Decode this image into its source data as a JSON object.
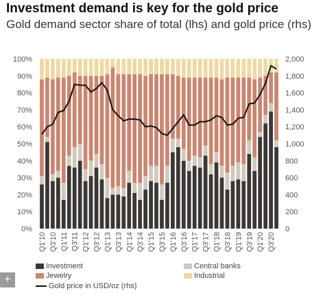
{
  "title": "Investment demand is key for the gold price",
  "subtitle": "Gold demand sector share of total (lhs) and gold price (rhs)",
  "chart_data": {
    "type": "bar",
    "stacked": true,
    "x": [
      "Q1'10",
      "Q2'10",
      "Q3'10",
      "Q4'10",
      "Q1'11",
      "Q2'11",
      "Q3'11",
      "Q4'11",
      "Q1'12",
      "Q2'12",
      "Q3'12",
      "Q4'12",
      "Q1'13",
      "Q2'13",
      "Q3'13",
      "Q4'13",
      "Q1'14",
      "Q2'14",
      "Q3'14",
      "Q4'14",
      "Q1'15",
      "Q2'15",
      "Q3'15",
      "Q4'15",
      "Q1'16",
      "Q2'16",
      "Q3'16",
      "Q4'16",
      "Q1'17",
      "Q2'17",
      "Q3'17",
      "Q4'17",
      "Q1'18",
      "Q2'18",
      "Q3'18",
      "Q4'18",
      "Q1'19",
      "Q2'19",
      "Q3'19",
      "Q4'19",
      "Q1'20",
      "Q2'20",
      "Q3'20",
      "Q4'20"
    ],
    "x_tick_labels": [
      "Q1'10",
      "Q3'10",
      "Q1'11",
      "Q3'11",
      "Q1'12",
      "Q3'12",
      "Q1'13",
      "Q3'13",
      "Q1'14",
      "Q3'14",
      "Q1'15",
      "Q3'15",
      "Q1'16",
      "Q3'16",
      "Q1'17",
      "Q3'17",
      "Q1'18",
      "Q3'18",
      "Q1'19",
      "Q3'19",
      "Q1'20",
      "Q3'20"
    ],
    "series": [
      {
        "name": "Investment",
        "color": "#3b3734",
        "values": [
          26,
          51,
          28,
          30,
          17,
          37,
          36,
          40,
          28,
          31,
          36,
          29,
          18,
          20,
          20,
          19,
          27,
          21,
          17,
          23,
          28,
          27,
          17,
          27,
          45,
          48,
          40,
          34,
          37,
          36,
          43,
          32,
          39,
          30,
          23,
          28,
          29,
          28,
          44,
          34,
          54,
          62,
          69,
          48
        ]
      },
      {
        "name": "Central banks",
        "color": "#d3c8bd",
        "values": [
          5,
          3,
          4,
          4,
          10,
          6,
          12,
          10,
          7,
          9,
          8,
          9,
          12,
          4,
          5,
          5,
          7,
          6,
          10,
          8,
          9,
          10,
          9,
          10,
          8,
          5,
          7,
          6,
          6,
          6,
          6,
          6,
          6,
          7,
          10,
          9,
          10,
          10,
          8,
          8,
          3,
          5,
          5,
          4
        ]
      },
      {
        "name": "Jewelry",
        "color": "#c98670",
        "values": [
          57,
          35,
          56,
          55,
          62,
          47,
          44,
          40,
          55,
          50,
          46,
          52,
          61,
          71,
          66,
          67,
          57,
          64,
          64,
          59,
          54,
          54,
          65,
          54,
          38,
          37,
          42,
          49,
          46,
          47,
          40,
          51,
          44,
          51,
          56,
          52,
          50,
          51,
          37,
          46,
          32,
          23,
          18,
          40
        ]
      },
      {
        "name": "Industrial",
        "color": "#eed9a4",
        "values": [
          12,
          11,
          12,
          11,
          11,
          10,
          8,
          10,
          10,
          10,
          10,
          10,
          9,
          5,
          9,
          9,
          9,
          9,
          9,
          10,
          9,
          9,
          9,
          9,
          9,
          10,
          11,
          11,
          11,
          11,
          11,
          11,
          11,
          12,
          11,
          11,
          11,
          11,
          11,
          12,
          11,
          10,
          8,
          8
        ]
      }
    ],
    "line_series": {
      "name": "Gold price in USD/oz (rhs)",
      "axis": "right",
      "color": "#111111",
      "values": [
        1110,
        1200,
        1230,
        1370,
        1390,
        1500,
        1700,
        1690,
        1690,
        1610,
        1650,
        1720,
        1630,
        1400,
        1330,
        1270,
        1290,
        1290,
        1280,
        1200,
        1210,
        1190,
        1120,
        1100,
        1180,
        1260,
        1340,
        1220,
        1220,
        1260,
        1260,
        1280,
        1330,
        1310,
        1220,
        1230,
        1300,
        1310,
        1470,
        1480,
        1580,
        1710,
        1920,
        1880
      ]
    },
    "yaxis_left": {
      "min": 0,
      "max": 100,
      "ticks": [
        "0%",
        "10%",
        "20%",
        "30%",
        "40%",
        "50%",
        "60%",
        "70%",
        "80%",
        "90%",
        "100%"
      ]
    },
    "yaxis_right": {
      "min": 0,
      "max": 2000,
      "ticks": [
        "0",
        "200",
        "400",
        "600",
        "800",
        "1,000",
        "1,200",
        "1,400",
        "1,600",
        "1,800",
        "2,000"
      ]
    },
    "grid": false,
    "legend_position": "bottom"
  },
  "legend": [
    {
      "label": "Investment",
      "color": "#3b3734",
      "kind": "swatch"
    },
    {
      "label": "Central banks",
      "color": "#d3c8bd",
      "kind": "swatch"
    },
    {
      "label": "Jewelry",
      "color": "#c98670",
      "kind": "swatch"
    },
    {
      "label": "Industrial",
      "color": "#eed9a4",
      "kind": "swatch"
    },
    {
      "label": "Gold price in USD/oz (rhs)",
      "color": "#111111",
      "kind": "line"
    }
  ],
  "toolbar": {
    "plus_label": "+"
  }
}
